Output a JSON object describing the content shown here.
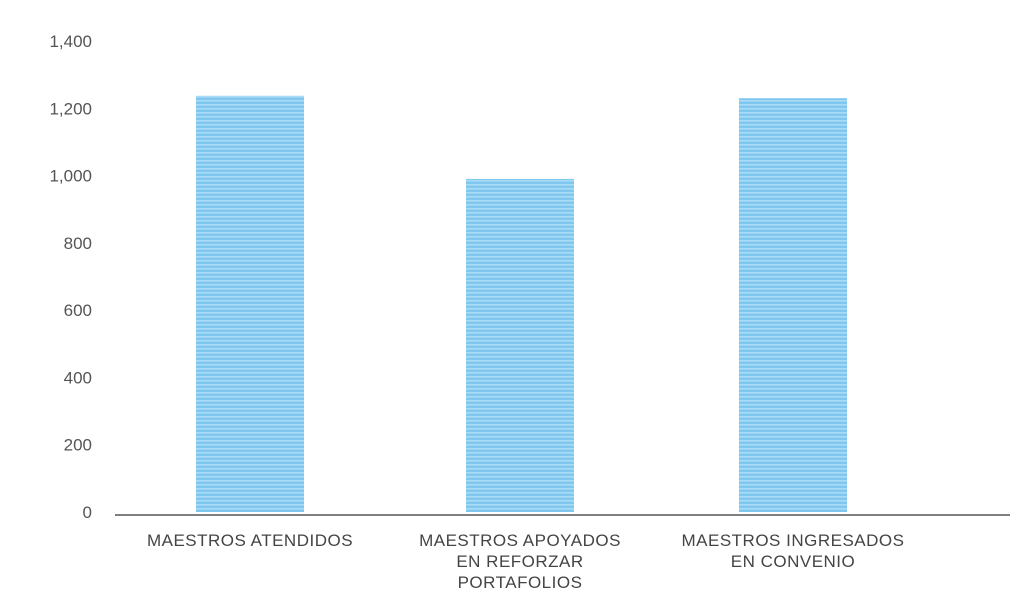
{
  "chart_data": {
    "type": "bar",
    "title": "",
    "xlabel": "",
    "ylabel": "",
    "categories": [
      [
        "MAESTROS ATENDIDOS"
      ],
      [
        "MAESTROS APOYADOS",
        "EN REFORZAR",
        "PORTAFOLIOS"
      ],
      [
        "MAESTROS INGRESADOS",
        "EN CONVENIO"
      ]
    ],
    "values": [
      1237,
      990,
      1230
    ],
    "ylim": [
      0,
      1400
    ],
    "yticks": [
      "0",
      "200",
      "400",
      "600",
      "800",
      "1,000",
      "1,200",
      "1,400"
    ],
    "grid": false,
    "legend": "none",
    "bar_color": "#7fc7ee",
    "bar_stripe_color": "#a9dbf5",
    "axis_color": "#555555"
  }
}
